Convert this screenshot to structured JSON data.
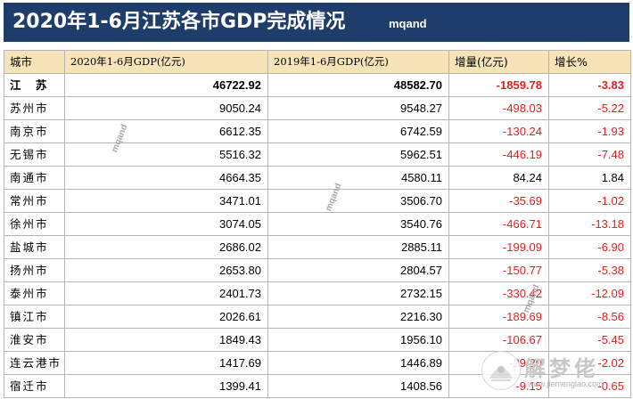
{
  "header": {
    "title": "2020年1-6月江苏各市GDP完成情况",
    "mark": "mqand"
  },
  "table": {
    "columns": [
      "城市",
      "2020年1-6月GDP(亿元)",
      "2019年1-6月GDP(亿元)",
      "增量(亿元)",
      "增长%"
    ],
    "rows": [
      {
        "city": "江 苏",
        "gdp2020": "46722.92",
        "gdp2019": "48582.70",
        "delta": "-1859.78",
        "growth": "-3.83"
      },
      {
        "city": "苏州市",
        "gdp2020": "9050.24",
        "gdp2019": "9548.27",
        "delta": "-498.03",
        "growth": "-5.22"
      },
      {
        "city": "南京市",
        "gdp2020": "6612.35",
        "gdp2019": "6742.59",
        "delta": "-130.24",
        "growth": "-1.93"
      },
      {
        "city": "无锡市",
        "gdp2020": "5516.32",
        "gdp2019": "5962.51",
        "delta": "-446.19",
        "growth": "-7.48"
      },
      {
        "city": "南通市",
        "gdp2020": "4664.35",
        "gdp2019": "4580.11",
        "delta": "84.24",
        "growth": "1.84"
      },
      {
        "city": "常州市",
        "gdp2020": "3471.01",
        "gdp2019": "3506.70",
        "delta": "-35.69",
        "growth": "-1.02"
      },
      {
        "city": "徐州市",
        "gdp2020": "3074.05",
        "gdp2019": "3540.76",
        "delta": "-466.71",
        "growth": "-13.18"
      },
      {
        "city": "盐城市",
        "gdp2020": "2686.02",
        "gdp2019": "2885.11",
        "delta": "-199.09",
        "growth": "-6.90"
      },
      {
        "city": "扬州市",
        "gdp2020": "2653.80",
        "gdp2019": "2804.57",
        "delta": "-150.77",
        "growth": "-5.38"
      },
      {
        "city": "泰州市",
        "gdp2020": "2401.73",
        "gdp2019": "2732.15",
        "delta": "-330.42",
        "growth": "-12.09"
      },
      {
        "city": "镇江市",
        "gdp2020": "2026.61",
        "gdp2019": "2216.30",
        "delta": "-189.69",
        "growth": "-8.56"
      },
      {
        "city": "淮安市",
        "gdp2020": "1849.43",
        "gdp2019": "1956.10",
        "delta": "-106.67",
        "growth": "-5.45"
      },
      {
        "city": "连云港市",
        "gdp2020": "1417.69",
        "gdp2019": "1446.89",
        "delta": "-29.20",
        "growth": "-2.02"
      },
      {
        "city": "宿迁市",
        "gdp2020": "1399.41",
        "gdp2019": "1408.56",
        "delta": "-9.15",
        "growth": "-0.65"
      }
    ]
  },
  "watermark": {
    "text": "mqand"
  },
  "logo": {
    "text": "解梦佬",
    "url": "www.jiemenglao.com",
    "icon": "logo-icon"
  },
  "colors": {
    "title_bg": "#1f3d6b",
    "header_bg": "#f6e3b8",
    "negative": "#e02020",
    "grid": "#b5b5b5"
  }
}
